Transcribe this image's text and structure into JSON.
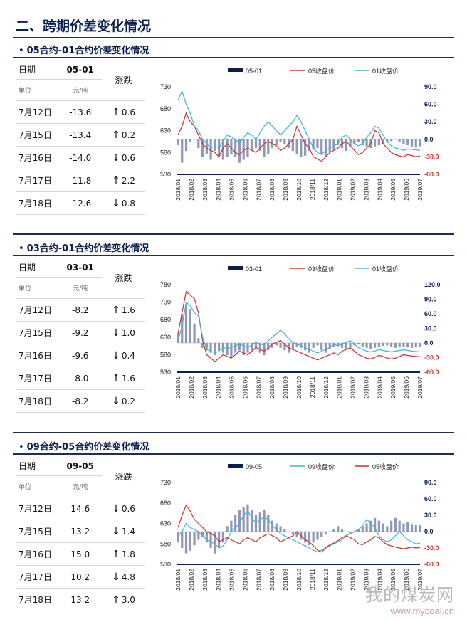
{
  "page": {
    "title": "二、跨期价差变化情况"
  },
  "colors": {
    "navy": "#0b1f4d",
    "red": "#c9302c",
    "cyan": "#3fb3dd",
    "spread": "#7c86a6",
    "up": "#d0312d",
    "down": "#2b3fb8"
  },
  "sections": [
    {
      "title": "05合约-01合约价差变化情况",
      "bullet": "•",
      "table": {
        "h_date": "日期",
        "h_code": "05-01",
        "h_change": "涨跌",
        "u_label": "单位",
        "u_unit": "元/吨",
        "rows": [
          {
            "date": "7月12日",
            "value": "-13.6",
            "dir": "up",
            "arrow": "↑",
            "change": "0.6"
          },
          {
            "date": "7月15日",
            "value": "-13.4",
            "dir": "up",
            "arrow": "↑",
            "change": "0.2"
          },
          {
            "date": "7月16日",
            "value": "-14.0",
            "dir": "down",
            "arrow": "↓",
            "change": "0.6"
          },
          {
            "date": "7月17日",
            "value": "-11.8",
            "dir": "up",
            "arrow": "↑",
            "change": "2.2"
          },
          {
            "date": "7月18日",
            "value": "-12.6",
            "dir": "down",
            "arrow": "↓",
            "change": "0.8"
          }
        ]
      },
      "chart_data": {
        "type": "bar+line",
        "legend": [
          "05-01",
          "05收盘价",
          "01收盘价"
        ],
        "left_ticks": [
          "730",
          "680",
          "630",
          "580",
          "530"
        ],
        "right_ticks": [
          "90.0",
          "60.0",
          "30.0",
          "0.0",
          "-30.0",
          "-60.0"
        ],
        "ylim_left": [
          530,
          730
        ],
        "ylim_right": [
          -60,
          90
        ],
        "x_ticks": [
          "2018/01",
          "2018/02",
          "2018/03",
          "2018/04",
          "2018/05",
          "2018/06",
          "2018/07",
          "2018/08",
          "2018/09",
          "2018/10",
          "2018/11",
          "2018/12",
          "2019/01",
          "2019/02",
          "2019/03",
          "2019/04",
          "2019/05",
          "2019/06",
          "2019/07"
        ],
        "series": [
          {
            "name": "05-01",
            "kind": "bar",
            "values": [
              -10,
              -40,
              -20,
              -5,
              0,
              -15,
              -30,
              -25,
              -35,
              -20,
              -30,
              -35,
              -30,
              -25,
              -30,
              -40,
              -35,
              -30,
              -20,
              -15,
              -20,
              -30,
              -25,
              -15,
              -10,
              -5,
              -8,
              -15,
              -20,
              -25,
              -30,
              -28,
              -20,
              -18,
              -15,
              -25,
              -30,
              -22,
              -18,
              -10,
              -15,
              -20,
              -12,
              -8,
              -5,
              -10,
              -12,
              -15,
              -12,
              -10,
              -8,
              -5,
              -3,
              0,
              -5,
              -8,
              -10,
              -12,
              -14,
              -12
            ]
          },
          {
            "name": "05收盘价",
            "kind": "line",
            "axis": "left",
            "values": [
              620,
              640,
              670,
              650,
              640,
              620,
              600,
              590,
              585,
              580,
              570,
              590,
              600,
              590,
              580,
              575,
              585,
              590,
              585,
              580,
              590,
              600,
              605,
              600,
              595,
              585,
              590,
              600,
              610,
              640,
              620,
              600,
              590,
              570,
              565,
              560,
              570,
              580,
              585,
              590,
              600,
              605,
              595,
              585,
              575,
              580,
              590,
              600,
              630,
              625,
              600,
              590,
              580,
              575,
              572,
              570,
              575,
              573,
              570,
              572
            ]
          },
          {
            "name": "01收盘价",
            "kind": "line",
            "axis": "left",
            "values": [
              700,
              720,
              690,
              670,
              640,
              630,
              610,
              600,
              590,
              595,
              590,
              605,
              620,
              615,
              610,
              600,
              615,
              625,
              620,
              610,
              625,
              640,
              650,
              640,
              630,
              620,
              630,
              640,
              650,
              665,
              650,
              630,
              610,
              590,
              580,
              575,
              585,
              590,
              595,
              600,
              615,
              620,
              610,
              600,
              595,
              600,
              615,
              625,
              640,
              635,
              620,
              605,
              595,
              590,
              588,
              585,
              588,
              587,
              586,
              585
            ]
          }
        ]
      }
    },
    {
      "title": "03合约-01合约价差变化情况",
      "bullet": "•",
      "table": {
        "h_date": "日期",
        "h_code": "03-01",
        "h_change": "涨跌",
        "u_label": "单位",
        "u_unit": "元/吨",
        "rows": [
          {
            "date": "7月12日",
            "value": "-8.2",
            "dir": "up",
            "arrow": "↑",
            "change": "1.6"
          },
          {
            "date": "7月15日",
            "value": "-9.2",
            "dir": "down",
            "arrow": "↓",
            "change": "1.0"
          },
          {
            "date": "7月16日",
            "value": "-9.6",
            "dir": "down",
            "arrow": "↓",
            "change": "0.4"
          },
          {
            "date": "7月17日",
            "value": "-8.0",
            "dir": "up",
            "arrow": "↑",
            "change": "1.6"
          },
          {
            "date": "7月18日",
            "value": "-8.2",
            "dir": "down",
            "arrow": "↓",
            "change": "0.2"
          }
        ]
      },
      "chart_data": {
        "type": "bar+line",
        "legend": [
          "03-01",
          "03收盘价",
          "01收盘价"
        ],
        "left_ticks": [
          "780",
          "730",
          "680",
          "630",
          "580",
          "530"
        ],
        "right_ticks": [
          "120.0",
          "90.0",
          "60.0",
          "30.0",
          "0.0",
          "-30.0",
          "-60.0"
        ],
        "ylim_left": [
          530,
          780
        ],
        "ylim_right": [
          -60,
          120
        ],
        "x_ticks": [
          "2018/01",
          "2018/02",
          "2018/03",
          "2018/04",
          "2018/05",
          "2018/06",
          "2018/07",
          "2018/08",
          "2018/09",
          "2018/10",
          "2018/11",
          "2018/12",
          "2019/01",
          "2019/02",
          "2019/03",
          "2019/04",
          "2019/05",
          "2019/06",
          "2019/07"
        ],
        "series": [
          {
            "name": "03-01",
            "kind": "bar",
            "values": [
              20,
              60,
              80,
              70,
              40,
              10,
              -10,
              -15,
              -20,
              -25,
              -15,
              -20,
              -25,
              -30,
              -20,
              -15,
              -25,
              -20,
              -15,
              -10,
              -20,
              -25,
              -15,
              -10,
              -5,
              -10,
              -15,
              -20,
              -12,
              -8,
              -10,
              -15,
              -20,
              -10,
              -5,
              -15,
              -20,
              -12,
              -8,
              -5,
              -10,
              -12,
              -8,
              -5,
              -3,
              -8,
              -10,
              -12,
              -10,
              -8,
              -6,
              -5,
              -8,
              -10,
              -9,
              -8,
              -9,
              -10,
              -8,
              -8
            ]
          },
          {
            "name": "03收盘价",
            "kind": "line",
            "axis": "left",
            "values": [
              640,
              700,
              760,
              750,
              740,
              700,
              620,
              580,
              570,
              560,
              570,
              580,
              575,
              570,
              580,
              590,
              585,
              580,
              590,
              600,
              595,
              590,
              600,
              610,
              615,
              620,
              610,
              600,
              595,
              590,
              585,
              580,
              575,
              570,
              565,
              570,
              575,
              580,
              585,
              580,
              590,
              595,
              600,
              590,
              580,
              575,
              570,
              568,
              572,
              578,
              575,
              570,
              568,
              570,
              575,
              580,
              578,
              576,
              575,
              574
            ]
          },
          {
            "name": "01收盘价",
            "kind": "line",
            "axis": "left",
            "values": [
              620,
              660,
              730,
              720,
              700,
              690,
              630,
              595,
              590,
              585,
              590,
              600,
              598,
              600,
              605,
              610,
              605,
              600,
              608,
              615,
              610,
              608,
              620,
              630,
              640,
              650,
              640,
              625,
              615,
              610,
              605,
              600,
              595,
              590,
              585,
              590,
              595,
              600,
              610,
              605,
              610,
              615,
              620,
              610,
              600,
              595,
              590,
              588,
              590,
              595,
              592,
              590,
              588,
              590,
              592,
              594,
              592,
              590,
              589,
              588
            ]
          }
        ]
      }
    },
    {
      "title": "09合约-05合约价差变化情况",
      "bullet": "•",
      "table": {
        "h_date": "日期",
        "h_code": "09-05",
        "h_change": "涨跌",
        "u_label": "单位",
        "u_unit": "元/吨",
        "rows": [
          {
            "date": "7月12日",
            "value": "14.6",
            "dir": "down",
            "arrow": "↓",
            "change": "0.6"
          },
          {
            "date": "7月15日",
            "value": "13.2",
            "dir": "down",
            "arrow": "↓",
            "change": "1.4"
          },
          {
            "date": "7月16日",
            "value": "15.0",
            "dir": "up",
            "arrow": "↑",
            "change": "1.8"
          },
          {
            "date": "7月17日",
            "value": "10.2",
            "dir": "down",
            "arrow": "↓",
            "change": "4.8"
          },
          {
            "date": "7月18日",
            "value": "13.2",
            "dir": "up",
            "arrow": "↑",
            "change": "3.0"
          }
        ]
      },
      "chart_data": {
        "type": "bar+line",
        "legend": [
          "09-05",
          "09收盘价",
          "05收盘价"
        ],
        "left_ticks": [
          "730",
          "680",
          "630",
          "580",
          "530"
        ],
        "right_ticks": [
          "90.0",
          "60.0",
          "30.0",
          "0.0",
          "-30.0",
          "-60.0"
        ],
        "ylim_left": [
          530,
          730
        ],
        "ylim_right": [
          -60,
          90
        ],
        "x_ticks": [
          "2018/01",
          "2018/02",
          "2018/03",
          "2018/04",
          "2018/05",
          "2018/06",
          "2018/07",
          "2018/08",
          "2018/09",
          "2018/10",
          "2018/11",
          "2018/12",
          "2019/01",
          "2019/02",
          "2019/03",
          "2019/04",
          "2019/05",
          "2019/06",
          "2019/07"
        ],
        "series": [
          {
            "name": "09-05",
            "kind": "bar",
            "values": [
              -20,
              -30,
              -40,
              -35,
              -25,
              -15,
              -10,
              -20,
              -30,
              -40,
              -30,
              -20,
              10,
              20,
              30,
              40,
              45,
              50,
              40,
              30,
              35,
              40,
              30,
              20,
              15,
              10,
              5,
              0,
              -5,
              -10,
              -15,
              -20,
              -25,
              -20,
              -15,
              -10,
              -5,
              0,
              5,
              10,
              5,
              0,
              -5,
              0,
              5,
              10,
              15,
              20,
              25,
              20,
              15,
              10,
              20,
              25,
              20,
              15,
              18,
              14,
              13,
              13
            ]
          },
          {
            "name": "09收盘价",
            "kind": "line",
            "axis": "left",
            "values": [
              600,
              610,
              630,
              620,
              615,
              610,
              600,
              590,
              585,
              580,
              570,
              575,
              590,
              610,
              620,
              630,
              650,
              660,
              645,
              630,
              640,
              645,
              640,
              625,
              615,
              605,
              600,
              595,
              590,
              585,
              580,
              575,
              570,
              565,
              560,
              565,
              570,
              575,
              580,
              585,
              590,
              600,
              605,
              610,
              615,
              625,
              640,
              630,
              620,
              600,
              590,
              585,
              590,
              600,
              610,
              600,
              590,
              585,
              580,
              582
            ]
          },
          {
            "name": "05收盘价",
            "kind": "line",
            "axis": "left",
            "values": [
              620,
              650,
              675,
              660,
              640,
              630,
              620,
              610,
              605,
              600,
              585,
              590,
              595,
              590,
              585,
              580,
              590,
              595,
              590,
              585,
              595,
              600,
              605,
              600,
              595,
              585,
              590,
              595,
              600,
              610,
              600,
              590,
              585,
              575,
              565,
              560,
              570,
              578,
              582,
              588,
              595,
              600,
              595,
              590,
              580,
              578,
              585,
              590,
              598,
              595,
              585,
              578,
              575,
              572,
              570,
              568,
              570,
              572,
              570,
              571
            ]
          }
        ]
      }
    }
  ],
  "watermark": {
    "cn": "我的煤炭网",
    "url": "www.mycoal.cn"
  }
}
